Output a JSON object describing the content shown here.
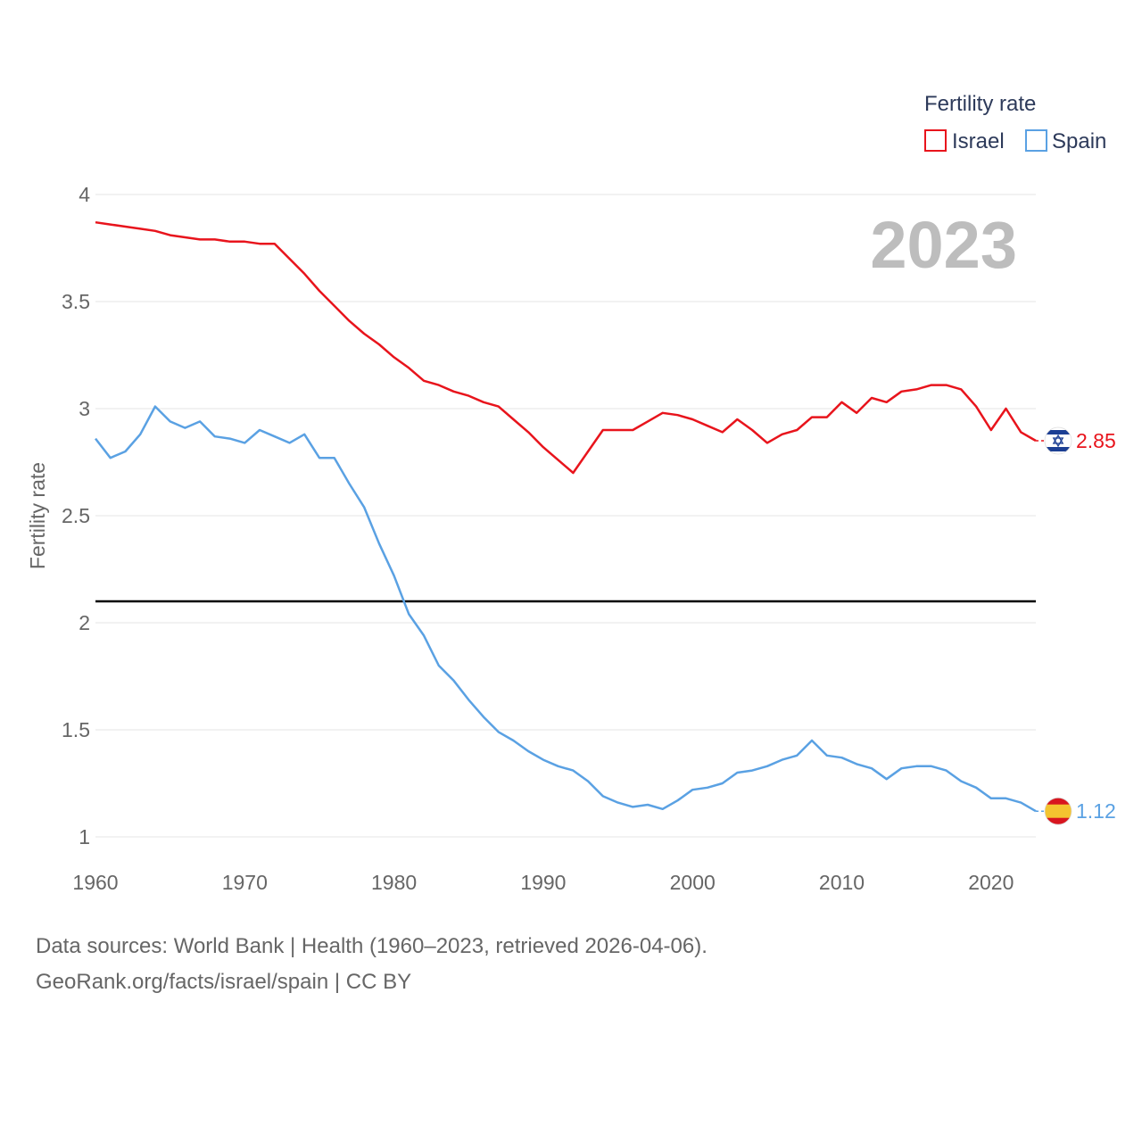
{
  "chart_data": {
    "type": "line",
    "ylabel": "Fertility rate",
    "xlabel": "",
    "year_label": "2023",
    "legend_title": "Fertility rate",
    "ylim": [
      1,
      4
    ],
    "xlim": [
      1960,
      2023
    ],
    "y_ticks": [
      "1",
      "1.5",
      "2",
      "2.5",
      "3",
      "3.5",
      "4"
    ],
    "x_ticks": [
      "1960",
      "1970",
      "1980",
      "1990",
      "2000",
      "2010",
      "2020"
    ],
    "reference_line": 2.1,
    "x": [
      1960,
      1961,
      1962,
      1963,
      1964,
      1965,
      1966,
      1967,
      1968,
      1969,
      1970,
      1971,
      1972,
      1973,
      1974,
      1975,
      1976,
      1977,
      1978,
      1979,
      1980,
      1981,
      1982,
      1983,
      1984,
      1985,
      1986,
      1987,
      1988,
      1989,
      1990,
      1991,
      1992,
      1993,
      1994,
      1995,
      1996,
      1997,
      1998,
      1999,
      2000,
      2001,
      2002,
      2003,
      2004,
      2005,
      2006,
      2007,
      2008,
      2009,
      2010,
      2011,
      2012,
      2013,
      2014,
      2015,
      2016,
      2017,
      2018,
      2019,
      2020,
      2021,
      2022,
      2023
    ],
    "series": [
      {
        "name": "Israel",
        "color": "#e8141c",
        "end_label": "2.85",
        "flag": "israel-flag",
        "values": [
          3.87,
          3.86,
          3.85,
          3.84,
          3.83,
          3.81,
          3.8,
          3.79,
          3.79,
          3.78,
          3.78,
          3.77,
          3.77,
          3.7,
          3.63,
          3.55,
          3.48,
          3.41,
          3.35,
          3.3,
          3.24,
          3.19,
          3.13,
          3.11,
          3.08,
          3.06,
          3.03,
          3.01,
          2.95,
          2.89,
          2.82,
          2.76,
          2.7,
          2.8,
          2.9,
          2.9,
          2.9,
          2.94,
          2.98,
          2.97,
          2.95,
          2.92,
          2.89,
          2.95,
          2.9,
          2.84,
          2.88,
          2.9,
          2.96,
          2.96,
          3.03,
          2.98,
          3.05,
          3.03,
          3.08,
          3.09,
          3.11,
          3.11,
          3.09,
          3.01,
          2.9,
          3.0,
          2.89,
          2.85
        ]
      },
      {
        "name": "Spain",
        "color": "#5aa1e3",
        "end_label": "1.12",
        "flag": "spain-flag",
        "values": [
          2.86,
          2.77,
          2.8,
          2.88,
          3.01,
          2.94,
          2.91,
          2.94,
          2.87,
          2.86,
          2.84,
          2.9,
          2.87,
          2.84,
          2.88,
          2.77,
          2.77,
          2.65,
          2.54,
          2.37,
          2.22,
          2.04,
          1.94,
          1.8,
          1.73,
          1.64,
          1.56,
          1.49,
          1.45,
          1.4,
          1.36,
          1.33,
          1.31,
          1.26,
          1.19,
          1.16,
          1.14,
          1.15,
          1.13,
          1.17,
          1.22,
          1.23,
          1.25,
          1.3,
          1.31,
          1.33,
          1.36,
          1.38,
          1.45,
          1.38,
          1.37,
          1.34,
          1.32,
          1.27,
          1.32,
          1.33,
          1.33,
          1.31,
          1.26,
          1.23,
          1.18,
          1.18,
          1.16,
          1.12
        ]
      }
    ]
  },
  "footer": {
    "line1": "Data sources: World Bank | Health (1960–2023, retrieved 2026-04-06).",
    "line2": "GeoRank.org/facts/israel/spain | CC BY"
  }
}
